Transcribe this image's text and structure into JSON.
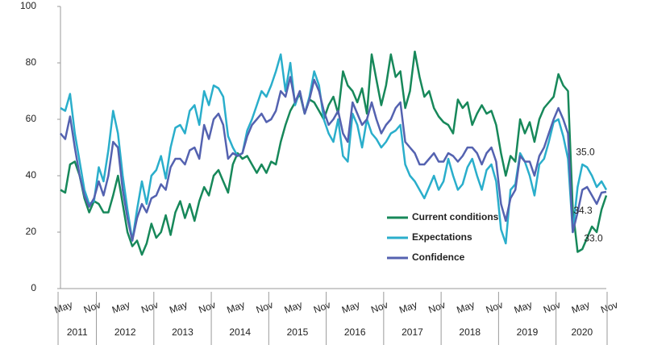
{
  "chart_data": {
    "type": "line",
    "categories": [
      "May",
      null,
      null,
      null,
      null,
      null,
      "Nov",
      null,
      null,
      null,
      null,
      null,
      "May",
      null,
      null,
      null,
      null,
      null,
      "Nov",
      null,
      null,
      null,
      null,
      null,
      "May",
      null,
      null,
      null,
      null,
      null,
      "Nov",
      null,
      null,
      null,
      null,
      null,
      "May",
      null,
      null,
      null,
      null,
      null,
      "Nov",
      null,
      null,
      null,
      null,
      null,
      "May",
      null,
      null,
      null,
      null,
      null,
      "Nov",
      null,
      null,
      null,
      null,
      null,
      "May",
      null,
      null,
      null,
      null,
      null,
      "Nov",
      null,
      null,
      null,
      null,
      null,
      "May",
      null,
      null,
      null,
      null,
      null,
      "Nov",
      null,
      null,
      null,
      null,
      null,
      "May",
      null,
      null,
      null,
      null,
      null,
      "Nov",
      null,
      null,
      null,
      null,
      null,
      "May",
      null,
      null,
      null,
      null,
      null,
      "Nov",
      null,
      null,
      null,
      null,
      null,
      "May",
      null,
      null,
      null,
      null,
      null,
      "Nov"
    ],
    "x_groups": [
      "2011",
      "2012",
      "2013",
      "2014",
      "2015",
      "2016",
      "2017",
      "2018",
      "2019",
      "2020"
    ],
    "ylim": [
      0,
      100
    ],
    "yticks": [
      0,
      20,
      40,
      60,
      80,
      100
    ],
    "legend": "center-right",
    "series": [
      {
        "name": "Current conditions",
        "color": "#17885a",
        "values": [
          35,
          34,
          44,
          45,
          40,
          32,
          27,
          31,
          30,
          27,
          27,
          33,
          40,
          30,
          20,
          15,
          17,
          12,
          16,
          23,
          18,
          20,
          26,
          19,
          27,
          31,
          25,
          30,
          24,
          31,
          36,
          33,
          40,
          42,
          38,
          34,
          44,
          48,
          46,
          47,
          44,
          41,
          44,
          41,
          45,
          44,
          52,
          58,
          63,
          66,
          69,
          62,
          67,
          66,
          63,
          60,
          65,
          68,
          62,
          77,
          72,
          70,
          66,
          71,
          62,
          83,
          74,
          65,
          72,
          83,
          75,
          77,
          64,
          70,
          84,
          75,
          68,
          70,
          64,
          61,
          59,
          58,
          55,
          67,
          64,
          66,
          58,
          62,
          65,
          62,
          63,
          58,
          48,
          40,
          47,
          45,
          60,
          55,
          59,
          52,
          60,
          64,
          66,
          68,
          76,
          72,
          70,
          28,
          13,
          14,
          18,
          22,
          20,
          28,
          33
        ]
      },
      {
        "name": "Expectations",
        "color": "#2aaecb",
        "values": [
          64,
          63,
          69,
          55,
          45,
          35,
          30,
          31,
          43,
          38,
          49,
          63,
          55,
          40,
          28,
          17,
          28,
          38,
          30,
          40,
          42,
          47,
          39,
          50,
          57,
          58,
          55,
          63,
          65,
          58,
          70,
          65,
          72,
          71,
          68,
          54,
          50,
          47,
          48,
          56,
          60,
          65,
          70,
          68,
          72,
          77,
          83,
          70,
          80,
          65,
          70,
          62,
          68,
          77,
          72,
          60,
          55,
          52,
          60,
          47,
          45,
          62,
          58,
          50,
          60,
          55,
          53,
          50,
          52,
          55,
          56,
          58,
          44,
          40,
          38,
          35,
          32,
          36,
          40,
          35,
          38,
          46,
          40,
          35,
          37,
          43,
          46,
          40,
          35,
          42,
          44,
          38,
          21,
          16,
          35,
          37,
          48,
          45,
          40,
          33,
          44,
          46,
          52,
          59,
          60,
          54,
          46,
          20,
          36,
          44,
          43,
          40,
          36,
          38,
          35
        ]
      },
      {
        "name": "Confidence",
        "color": "#5462b0",
        "values": [
          55,
          53,
          61,
          50,
          40,
          33,
          29,
          32,
          38,
          33,
          40,
          52,
          50,
          35,
          25,
          17,
          25,
          30,
          27,
          32,
          33,
          37,
          35,
          43,
          46,
          46,
          44,
          49,
          50,
          46,
          58,
          53,
          60,
          62,
          58,
          46,
          48,
          47,
          48,
          54,
          58,
          60,
          62,
          59,
          60,
          63,
          70,
          68,
          75,
          66,
          70,
          62,
          67,
          74,
          70,
          63,
          58,
          60,
          63,
          55,
          52,
          66,
          62,
          58,
          60,
          66,
          60,
          55,
          58,
          60,
          64,
          66,
          52,
          50,
          48,
          44,
          44,
          46,
          48,
          45,
          45,
          48,
          47,
          45,
          47,
          50,
          50,
          48,
          44,
          48,
          50,
          45,
          30,
          24,
          32,
          35,
          47,
          45,
          45,
          40,
          47,
          50,
          55,
          60,
          64,
          60,
          55,
          20,
          27,
          35,
          36,
          33,
          30,
          34,
          34.3
        ]
      }
    ],
    "annotations": [
      {
        "text": "35.0",
        "series": 1
      },
      {
        "text": "34.3",
        "series": 2
      },
      {
        "text": "33.0",
        "series": 0
      }
    ]
  }
}
